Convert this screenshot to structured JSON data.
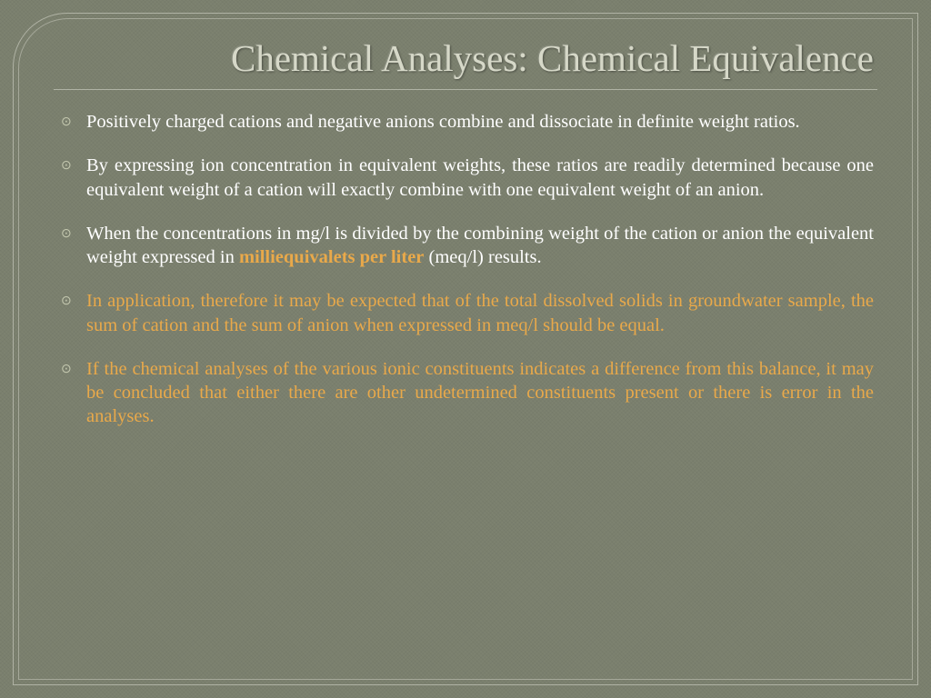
{
  "colors": {
    "background": "#7d8270",
    "title_text": "#d6d8c8",
    "body_text": "#ffffff",
    "accent_text": "#e9a94a",
    "border": "rgba(230,230,220,0.5)"
  },
  "typography": {
    "title_fontsize": 41,
    "body_fontsize": 20.5,
    "font_family": "Georgia"
  },
  "title": "Chemical Analyses: Chemical Equivalence",
  "bullets": [
    {
      "color": "white",
      "text": "Positively charged cations and negative anions combine and dissociate in definite weight ratios."
    },
    {
      "color": "white",
      "text": "By expressing ion concentration in equivalent weights, these ratios are readily determined because one equivalent weight of a cation will exactly combine with one equivalent weight of an anion."
    },
    {
      "color": "white",
      "pre": "When the concentrations in mg/l is divided by the combining weight of the cation or anion the equivalent weight expressed in ",
      "highlight": "milliequivalets per liter",
      "post": " (meq/l) results."
    },
    {
      "color": "orange",
      "text": "In application, therefore it may be expected that of the total dissolved solids in groundwater sample, the sum of cation and the sum of anion when expressed in meq/l should be equal."
    },
    {
      "color": "orange",
      "text": "If the chemical analyses of the various ionic constituents indicates a difference from this balance, it may be concluded that either there are other undetermined constituents present or there is error in the analyses."
    }
  ],
  "bullet_marker": "⊙"
}
